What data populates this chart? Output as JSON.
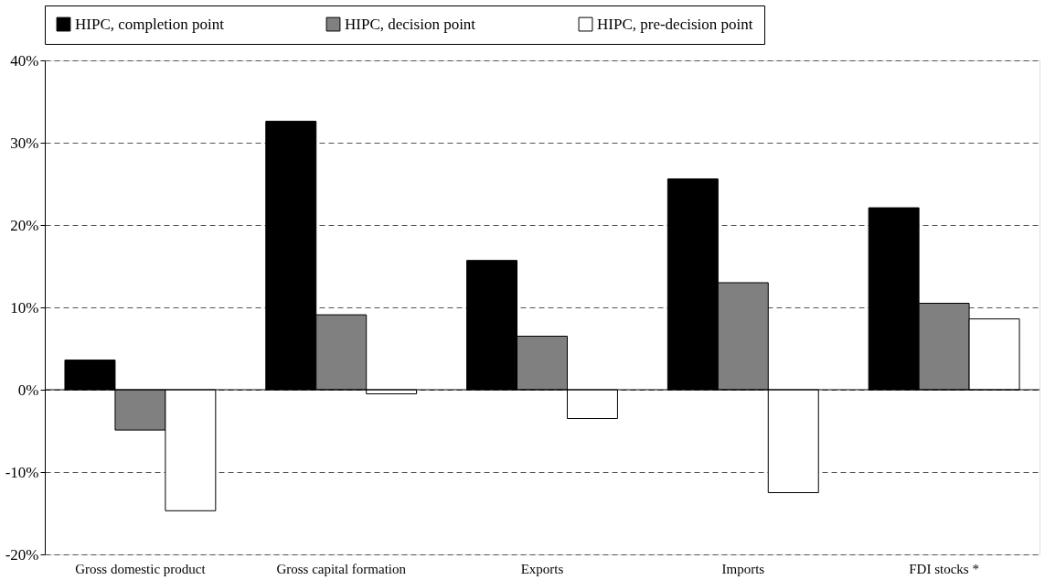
{
  "chart_data": {
    "type": "bar",
    "categories": [
      "Gross domestic product",
      "Gross capital formation",
      "Exports",
      "Imports",
      "FDI stocks *"
    ],
    "series": [
      {
        "name": "HIPC, completion point",
        "color": "#000000",
        "values": [
          3.6,
          32.6,
          15.7,
          25.6,
          22.1
        ]
      },
      {
        "name": "HIPC, decision point",
        "color": "#808080",
        "values": [
          -4.9,
          9.1,
          6.5,
          13.0,
          10.5
        ]
      },
      {
        "name": "HIPC, pre-decision point",
        "color": "#ffffff",
        "values": [
          -14.7,
          -0.5,
          -3.5,
          -12.5,
          8.6
        ]
      }
    ],
    "ylim": [
      -20,
      40
    ],
    "yticks": [
      {
        "value": -20,
        "label": "-20%"
      },
      {
        "value": -10,
        "label": "-10%"
      },
      {
        "value": 0,
        "label": "0%"
      },
      {
        "value": 10,
        "label": "10%"
      },
      {
        "value": 20,
        "label": "20%"
      },
      {
        "value": 30,
        "label": "30%"
      },
      {
        "value": 40,
        "label": "40%"
      }
    ],
    "grid": "y",
    "legend": "top"
  }
}
